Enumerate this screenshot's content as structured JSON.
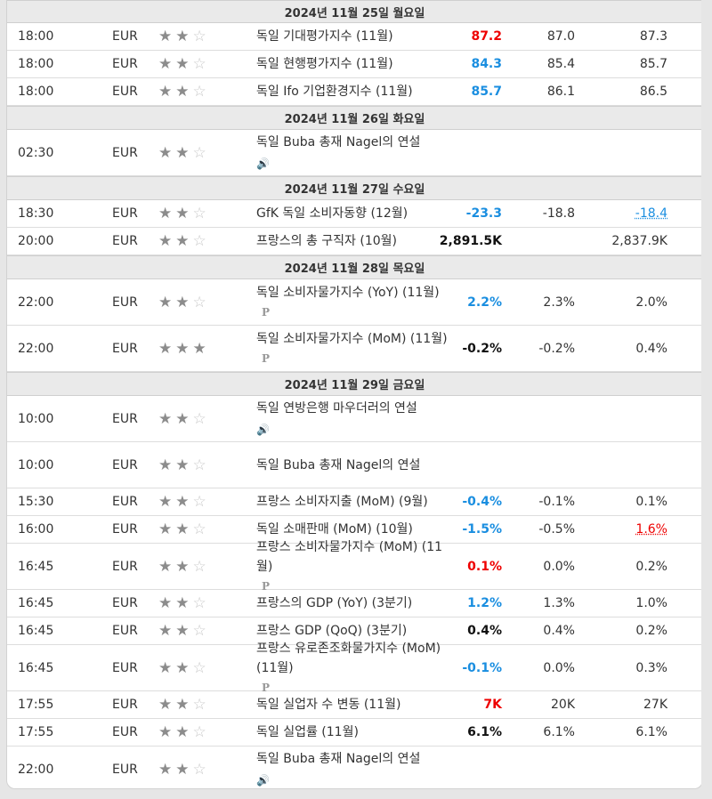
{
  "days": [
    {
      "date": "2024년 11월 25일 월요일",
      "events": [
        {
          "time": "18:00",
          "flag": "de",
          "currency": "EUR",
          "stars": 2,
          "name": "독일 기대평가지수 (11월)",
          "actual": "87.2",
          "actual_color": "red",
          "forecast": "87.0",
          "previous": "87.3"
        },
        {
          "time": "18:00",
          "flag": "de",
          "currency": "EUR",
          "stars": 2,
          "name": "독일 현행평가지수 (11월)",
          "actual": "84.3",
          "actual_color": "blue",
          "forecast": "85.4",
          "previous": "85.7"
        },
        {
          "time": "18:00",
          "flag": "de",
          "currency": "EUR",
          "stars": 2,
          "name": "독일 Ifo 기업환경지수 (11월)",
          "actual": "85.7",
          "actual_color": "blue",
          "forecast": "86.1",
          "previous": "86.5"
        }
      ]
    },
    {
      "date": "2024년 11월 26일 화요일",
      "events": [
        {
          "time": "02:30",
          "flag": "de",
          "currency": "EUR",
          "stars": 2,
          "name": "독일 Buba 총재 Nagel의 연설",
          "speech": true,
          "actual": "",
          "forecast": "",
          "previous": ""
        }
      ]
    },
    {
      "date": "2024년 11월 27일 수요일",
      "events": [
        {
          "time": "18:30",
          "flag": "de",
          "currency": "EUR",
          "stars": 2,
          "name": "GfK 독일 소비자동향 (12월)",
          "actual": "-23.3",
          "actual_color": "blue",
          "forecast": "-18.8",
          "previous": "-18.4",
          "previous_color": "blue"
        },
        {
          "time": "20:00",
          "flag": "fr",
          "currency": "EUR",
          "stars": 2,
          "name": "프랑스의 총 구직자 (10월)",
          "actual": "2,891.5K",
          "actual_color": "black",
          "forecast": "",
          "previous": "2,837.9K"
        }
      ]
    },
    {
      "date": "2024년 11월 28일 목요일",
      "events": [
        {
          "time": "22:00",
          "flag": "de",
          "currency": "EUR",
          "stars": 2,
          "name": "독일 소비자물가지수 (YoY) (11월)",
          "prelim": "P",
          "actual": "2.2%",
          "actual_color": "blue",
          "forecast": "2.3%",
          "previous": "2.0%"
        },
        {
          "time": "22:00",
          "flag": "de",
          "currency": "EUR",
          "stars": 3,
          "name": "독일 소비자물가지수 (MoM) (11월)",
          "prelim": "P",
          "actual": "-0.2%",
          "actual_color": "black",
          "forecast": "-0.2%",
          "previous": "0.4%"
        }
      ]
    },
    {
      "date": "2024년 11월 29일 금요일",
      "events": [
        {
          "time": "10:00",
          "flag": "de",
          "currency": "EUR",
          "stars": 2,
          "name": "독일 연방은행 마우더러의 연설",
          "speech": true,
          "actual": "",
          "forecast": "",
          "previous": ""
        },
        {
          "time": "10:00",
          "flag": "de",
          "currency": "EUR",
          "stars": 2,
          "name": "독일 Buba 총재 Nagel의 연설",
          "speech": false,
          "tall": true,
          "actual": "",
          "forecast": "",
          "previous": ""
        },
        {
          "time": "15:30",
          "flag": "fr",
          "currency": "EUR",
          "stars": 2,
          "name": "프랑스 소비자지출 (MoM) (9월)",
          "actual": "-0.4%",
          "actual_color": "blue",
          "forecast": "-0.1%",
          "previous": "0.1%"
        },
        {
          "time": "16:00",
          "flag": "de",
          "currency": "EUR",
          "stars": 2,
          "name": "독일 소매판매 (MoM) (10월)",
          "actual": "-1.5%",
          "actual_color": "blue",
          "forecast": "-0.5%",
          "previous": "1.6%",
          "previous_color": "red"
        },
        {
          "time": "16:45",
          "flag": "fr",
          "currency": "EUR",
          "stars": 2,
          "name": "프랑스 소비자물가지수 (MoM) (11월)",
          "prelim": "P",
          "actual": "0.1%",
          "actual_color": "red",
          "forecast": "0.0%",
          "previous": "0.2%"
        },
        {
          "time": "16:45",
          "flag": "fr",
          "currency": "EUR",
          "stars": 2,
          "name": "프랑스의 GDP (YoY) (3분기)",
          "actual": "1.2%",
          "actual_color": "blue",
          "forecast": "1.3%",
          "previous": "1.0%"
        },
        {
          "time": "16:45",
          "flag": "fr",
          "currency": "EUR",
          "stars": 2,
          "name": "프랑스 GDP (QoQ) (3분기)",
          "actual": "0.4%",
          "actual_color": "black",
          "forecast": "0.4%",
          "previous": "0.2%"
        },
        {
          "time": "16:45",
          "flag": "fr",
          "currency": "EUR",
          "stars": 2,
          "name": "프랑스 유로존조화물가지수 (MoM) (11월)",
          "prelim": "P",
          "actual": "-0.1%",
          "actual_color": "blue",
          "forecast": "0.0%",
          "previous": "0.3%"
        },
        {
          "time": "17:55",
          "flag": "de",
          "currency": "EUR",
          "stars": 2,
          "name": "독일 실업자 수 변동 (11월)",
          "actual": "7K",
          "actual_color": "red",
          "forecast": "20K",
          "previous": "27K"
        },
        {
          "time": "17:55",
          "flag": "de",
          "currency": "EUR",
          "stars": 2,
          "name": "독일 실업률 (11월)",
          "actual": "6.1%",
          "actual_color": "black",
          "forecast": "6.1%",
          "previous": "6.1%"
        },
        {
          "time": "22:00",
          "flag": "de",
          "currency": "EUR",
          "stars": 2,
          "name": "독일 Buba 총재 Nagel의 연설",
          "speech": true,
          "actual": "",
          "forecast": "",
          "previous": ""
        }
      ]
    }
  ]
}
